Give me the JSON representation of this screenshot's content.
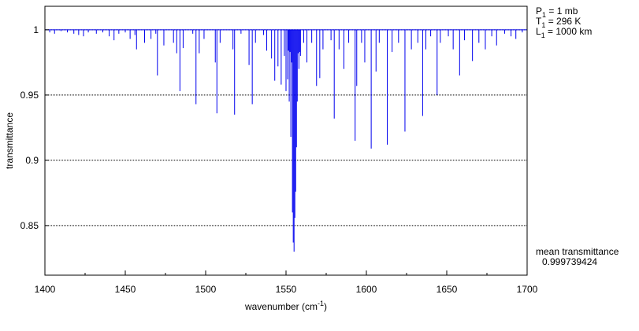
{
  "chart_data": {
    "type": "stem",
    "xlabel": {
      "text": "wavenumber (cm",
      "sup": "-1",
      "end": ")"
    },
    "ylabel": "transmittance",
    "xlim": [
      1400,
      1700
    ],
    "xticks": [
      1400,
      1450,
      1500,
      1550,
      1600,
      1650,
      1700
    ],
    "xminorticks": [
      1425,
      1475,
      1525,
      1575,
      1625,
      1675
    ],
    "ylim": [
      0.812,
      1.018
    ],
    "yticks": [
      0.85,
      0.9,
      0.95,
      1
    ],
    "grid": true,
    "color": "#0000ee",
    "baseline": 1,
    "conditions": [
      {
        "symbol": "P",
        "sub": "1",
        "text": " = 1 mb"
      },
      {
        "symbol": "T",
        "sub": "1",
        "text": " = 296 K"
      },
      {
        "symbol": "L",
        "sub": "1",
        "text": " = 1000 km"
      }
    ],
    "mean_label": "mean transmittance",
    "mean_value": "0.999739424",
    "x": [
      1403,
      1406,
      1410,
      1414,
      1418,
      1421,
      1424,
      1427,
      1432,
      1436,
      1440,
      1443,
      1446,
      1450,
      1453,
      1456,
      1457,
      1462,
      1466,
      1469,
      1470,
      1474,
      1480,
      1482,
      1484,
      1486,
      1492,
      1494,
      1496,
      1499,
      1506,
      1507,
      1509,
      1517,
      1518,
      1522,
      1527,
      1529,
      1531,
      1536,
      1538,
      1541,
      1543,
      1545,
      1547,
      1549,
      1550,
      1551,
      1551.5,
      1552,
      1552.5,
      1553,
      1553.5,
      1554,
      1554.5,
      1555,
      1555.5,
      1556,
      1556.5,
      1557,
      1557.5,
      1558,
      1558.5,
      1559,
      1561,
      1563,
      1566,
      1569,
      1571,
      1573,
      1578,
      1580,
      1583,
      1586,
      1589,
      1593,
      1594,
      1597,
      1599,
      1603,
      1606,
      1608,
      1613,
      1616,
      1620,
      1624,
      1628,
      1632,
      1635,
      1637,
      1640,
      1644,
      1646,
      1651,
      1654,
      1658,
      1661,
      1666,
      1670,
      1674,
      1678,
      1681,
      1686,
      1690,
      1693,
      1697
    ],
    "values": [
      0.998,
      0.997,
      0.999,
      0.998,
      0.997,
      0.996,
      0.995,
      0.998,
      0.997,
      0.998,
      0.995,
      0.992,
      0.997,
      0.998,
      0.993,
      0.996,
      0.985,
      0.99,
      0.993,
      0.997,
      0.965,
      0.988,
      0.99,
      0.982,
      0.953,
      0.986,
      0.997,
      0.943,
      0.982,
      0.993,
      0.975,
      0.936,
      0.99,
      0.985,
      0.935,
      0.997,
      0.973,
      0.943,
      0.99,
      0.996,
      0.984,
      0.978,
      0.961,
      0.972,
      0.958,
      0.98,
      0.953,
      0.962,
      0.984,
      0.945,
      0.983,
      0.918,
      0.975,
      0.86,
      0.837,
      0.83,
      0.856,
      0.876,
      0.91,
      0.945,
      0.982,
      0.97,
      0.983,
      0.98,
      0.99,
      0.975,
      0.99,
      0.957,
      0.963,
      0.985,
      0.992,
      0.932,
      0.985,
      0.97,
      0.99,
      0.915,
      0.957,
      0.99,
      0.975,
      0.909,
      0.968,
      0.99,
      0.912,
      0.983,
      0.99,
      0.922,
      0.985,
      0.99,
      0.934,
      0.985,
      0.995,
      0.95,
      0.99,
      0.995,
      0.985,
      0.965,
      0.992,
      0.976,
      0.99,
      0.985,
      0.995,
      0.988,
      0.997,
      0.995,
      0.993,
      0.998
    ]
  }
}
